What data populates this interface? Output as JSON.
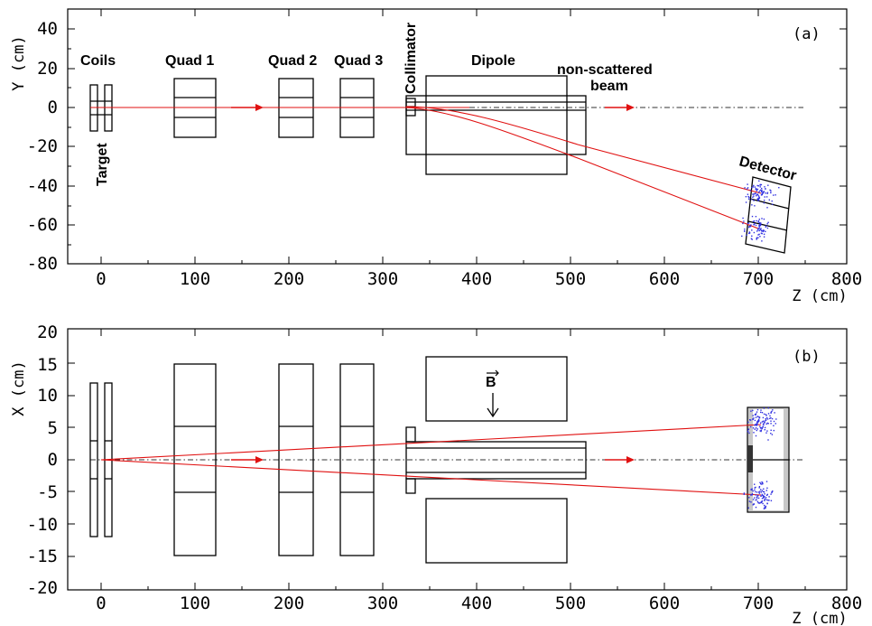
{
  "panel_a": {
    "label": "(a)",
    "y_axis_label": "Y (cm)",
    "x_axis_label": "Z (cm)",
    "y_ticks": [
      "40",
      "20",
      "0",
      "-20",
      "-40",
      "-60",
      "-80"
    ],
    "x_ticks": [
      "0",
      "100",
      "200",
      "300",
      "400",
      "500",
      "600",
      "700",
      "800"
    ],
    "labels": {
      "coils": "Coils",
      "quad1": "Quad 1",
      "quad2": "Quad 2",
      "quad3": "Quad 3",
      "collimator": "Collimator",
      "dipole": "Dipole",
      "non_scattered_1": "non-scattered",
      "non_scattered_2": "beam",
      "target": "Target",
      "detector": "Detector"
    }
  },
  "panel_b": {
    "label": "(b)",
    "y_axis_label": "X (cm)",
    "x_axis_label": "Z (cm)",
    "y_ticks": [
      "20",
      "15",
      "10",
      "5",
      "0",
      "-5",
      "-10",
      "-15",
      "-20"
    ],
    "x_ticks": [
      "0",
      "100",
      "200",
      "300",
      "400",
      "500",
      "600",
      "700",
      "800"
    ],
    "field_label": "B"
  },
  "colors": {
    "beam": "#e01010",
    "hits": "#3030e0"
  }
}
